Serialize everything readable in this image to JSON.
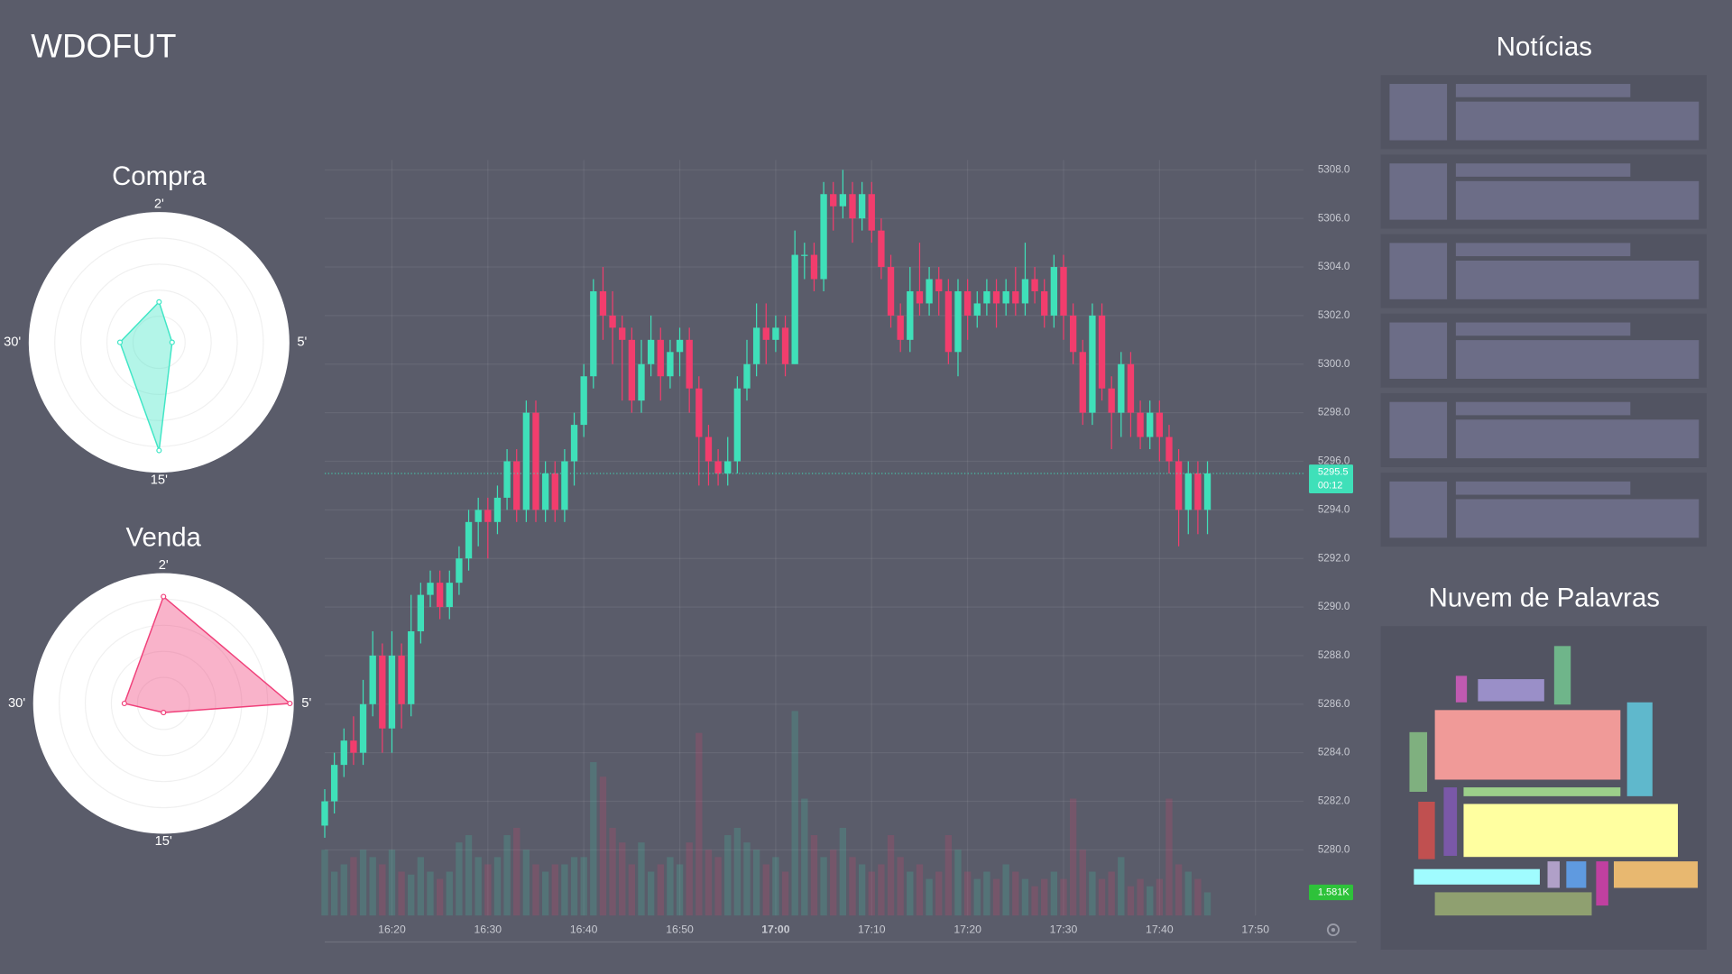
{
  "header": {
    "title": "WDOFUT"
  },
  "news": {
    "title": "Notícias"
  },
  "wordcloud": {
    "title": "Nuvem de Palavras"
  },
  "chart_data": [
    {
      "type": "candlestick",
      "x": [
        "16:13",
        "16:14",
        "16:15",
        "16:16",
        "16:17",
        "16:18",
        "16:19",
        "16:20",
        "16:21",
        "16:22",
        "16:23",
        "16:24",
        "16:25",
        "16:26",
        "16:27",
        "16:28",
        "16:29",
        "16:30",
        "16:31",
        "16:32",
        "16:33",
        "16:34",
        "16:35",
        "16:36",
        "16:37",
        "16:38",
        "16:39",
        "16:40",
        "16:41",
        "16:42",
        "16:43",
        "16:44",
        "16:45",
        "16:46",
        "16:47",
        "16:48",
        "16:49",
        "16:50",
        "16:51",
        "16:52",
        "16:53",
        "16:54",
        "16:55",
        "16:56",
        "16:57",
        "16:58",
        "16:59",
        "17:00",
        "17:01",
        "17:02",
        "17:03",
        "17:04",
        "17:05",
        "17:06",
        "17:07",
        "17:08",
        "17:09",
        "17:10",
        "17:11",
        "17:12",
        "17:13",
        "17:14",
        "17:15",
        "17:16",
        "17:17",
        "17:18",
        "17:19",
        "17:20",
        "17:21",
        "17:22",
        "17:23",
        "17:24",
        "17:25",
        "17:26",
        "17:27",
        "17:28",
        "17:29",
        "17:30",
        "17:31",
        "17:32",
        "17:33",
        "17:34",
        "17:35",
        "17:36",
        "17:37",
        "17:38",
        "17:39",
        "17:40",
        "17:41",
        "17:42",
        "17:43",
        "17:44",
        "17:45"
      ],
      "open": [
        5281,
        5282,
        5283.5,
        5284.5,
        5284,
        5286,
        5288,
        5285,
        5288,
        5286,
        5289,
        5290.5,
        5291,
        5290,
        5291,
        5292,
        5293.5,
        5294,
        5293.5,
        5294.5,
        5296,
        5294,
        5298,
        5294,
        5295.5,
        5294,
        5296,
        5297.5,
        5299.5,
        5303,
        5302,
        5301.5,
        5301,
        5298.5,
        5300,
        5301,
        5299.5,
        5300.5,
        5301,
        5299,
        5297,
        5296,
        5295.5,
        5296,
        5299,
        5300,
        5301.5,
        5301,
        5301.5,
        5300,
        5304.5,
        5304.5,
        5303.5,
        5307,
        5306.5,
        5307,
        5306,
        5307,
        5305.5,
        5304,
        5302,
        5301,
        5303,
        5302.5,
        5303.5,
        5303,
        5300.5,
        5303,
        5302,
        5302.5,
        5303,
        5302.5,
        5303,
        5302.5,
        5303.5,
        5303,
        5302,
        5304,
        5302,
        5300.5,
        5298,
        5302,
        5299,
        5298,
        5300,
        5298,
        5297,
        5298,
        5297,
        5296,
        5294,
        5295.5,
        5294
      ],
      "high": [
        5282.5,
        5284,
        5285,
        5285.5,
        5287,
        5289,
        5288.5,
        5289,
        5288.5,
        5290.5,
        5291,
        5291.5,
        5291.5,
        5291.5,
        5292.5,
        5294,
        5294.5,
        5294.5,
        5295,
        5296.5,
        5296.5,
        5298.5,
        5298.5,
        5296,
        5296,
        5296.5,
        5298,
        5300,
        5303.5,
        5304,
        5303,
        5302,
        5301.5,
        5301,
        5302,
        5301.5,
        5301,
        5301.5,
        5301.5,
        5299.5,
        5297.5,
        5296.5,
        5297,
        5299.5,
        5301,
        5302.5,
        5302.5,
        5302,
        5302,
        5305.5,
        5305,
        5305,
        5307.5,
        5307.5,
        5308,
        5307.5,
        5307.5,
        5307.5,
        5306,
        5304.5,
        5302.5,
        5304,
        5305,
        5304,
        5304,
        5303.5,
        5303.5,
        5303.5,
        5303,
        5303.5,
        5303.5,
        5303.5,
        5304,
        5305,
        5304,
        5303.5,
        5304.5,
        5304.5,
        5302.5,
        5301,
        5302.5,
        5302.5,
        5299.5,
        5300.5,
        5300.5,
        5298.5,
        5298.5,
        5298.5,
        5297.5,
        5296.5,
        5296,
        5296,
        5296
      ],
      "low": [
        5280.5,
        5281.5,
        5283,
        5283.5,
        5283.5,
        5285.5,
        5284,
        5284,
        5285,
        5285.5,
        5288.5,
        5290,
        5289.5,
        5289.5,
        5290.5,
        5291.5,
        5292.5,
        5292,
        5293,
        5294,
        5293.5,
        5293.5,
        5293.5,
        5293.5,
        5293.5,
        5293.5,
        5295,
        5297,
        5299,
        5301,
        5300,
        5298.5,
        5298,
        5298,
        5299.5,
        5298.5,
        5299,
        5299.5,
        5298,
        5295,
        5295,
        5295,
        5295,
        5295.5,
        5298.5,
        5299.5,
        5300,
        5300.5,
        5299.5,
        5300,
        5303.5,
        5303,
        5303,
        5305.5,
        5306,
        5305,
        5305.5,
        5305,
        5303.5,
        5301.5,
        5300.5,
        5300.5,
        5302,
        5302,
        5302,
        5300,
        5299.5,
        5301,
        5301.5,
        5302,
        5301.5,
        5302,
        5302,
        5302,
        5302.5,
        5301.5,
        5301.5,
        5301,
        5300,
        5297.5,
        5297.5,
        5298.5,
        5296.5,
        5297,
        5297,
        5296.5,
        5296.5,
        5296,
        5295.5,
        5292.5,
        5293,
        5293,
        5293
      ],
      "close": [
        5282,
        5283.5,
        5284.5,
        5284,
        5286,
        5288,
        5285,
        5288,
        5286,
        5289,
        5290.5,
        5291,
        5290,
        5291,
        5292,
        5293.5,
        5294,
        5293.5,
        5294.5,
        5296,
        5294,
        5298,
        5294,
        5295.5,
        5294,
        5296,
        5297.5,
        5299.5,
        5303,
        5302,
        5301.5,
        5301,
        5298.5,
        5300,
        5301,
        5299.5,
        5300.5,
        5301,
        5299,
        5297,
        5296,
        5295.5,
        5296,
        5299,
        5300,
        5301.5,
        5301,
        5301.5,
        5300,
        5304.5,
        5304.5,
        5303.5,
        5307,
        5306.5,
        5307,
        5306,
        5307,
        5305.5,
        5304,
        5302,
        5301,
        5303,
        5302.5,
        5303.5,
        5303,
        5300.5,
        5303,
        5302,
        5302.5,
        5303,
        5302.5,
        5303,
        5302.5,
        5303.5,
        5303,
        5302,
        5304,
        5302,
        5300.5,
        5298,
        5302,
        5299,
        5298,
        5300,
        5298,
        5297,
        5298,
        5297,
        5296,
        5294,
        5295.5,
        5294,
        5295.5
      ],
      "volume": [
        4500,
        3000,
        3500,
        4000,
        4500,
        4000,
        3500,
        4500,
        3000,
        2800,
        4000,
        3000,
        2500,
        3000,
        5000,
        5500,
        4000,
        3500,
        4000,
        5500,
        6000,
        4500,
        3500,
        3000,
        3500,
        3500,
        4000,
        4000,
        10500,
        9500,
        6000,
        5000,
        3500,
        5000,
        3000,
        3500,
        4000,
        3500,
        5000,
        12500,
        4500,
        4000,
        5500,
        6000,
        5000,
        4500,
        3500,
        4000,
        3000,
        14000,
        8000,
        5500,
        4000,
        4500,
        6000,
        4000,
        3500,
        3000,
        3500,
        5500,
        4000,
        3000,
        3500,
        2500,
        3000,
        5500,
        4500,
        3000,
        2500,
        3000,
        2500,
        3500,
        3000,
        2500,
        2000,
        2500,
        3000,
        2500,
        8000,
        4500,
        3000,
        2500,
        3000,
        4000,
        2000,
        2500,
        2000,
        2500,
        8000,
        3500,
        3000,
        2500,
        1581
      ],
      "volume_last_label": "1.581K",
      "countdown": "00:12",
      "up_color": "#3fe0b9",
      "down_color": "#f23d6d",
      "xlim": [
        "16:13",
        "17:55"
      ],
      "xticks": [
        "16:20",
        "16:30",
        "16:40",
        "16:50",
        "17:00",
        "17:10",
        "17:20",
        "17:30",
        "17:40",
        "17:50"
      ],
      "ylim": [
        5277.3,
        5308.4
      ],
      "yticks": [
        {
          "value": 5280,
          "label": "5280.0"
        },
        {
          "value": 5282,
          "label": "5282.0"
        },
        {
          "value": 5284,
          "label": "5284.0"
        },
        {
          "value": 5286,
          "label": "5286.0"
        },
        {
          "value": 5288,
          "label": "5288.0"
        },
        {
          "value": 5290,
          "label": "5290.0"
        },
        {
          "value": 5292,
          "label": "5292.0"
        },
        {
          "value": 5294,
          "label": "5294.0"
        },
        {
          "value": 5296,
          "label": "5296.0"
        },
        {
          "value": 5298,
          "label": "5298.0"
        },
        {
          "value": 5300,
          "label": "5300.0"
        },
        {
          "value": 5302,
          "label": "5302.0"
        },
        {
          "value": 5304,
          "label": "5304.0"
        },
        {
          "value": 5306,
          "label": "5306.0"
        },
        {
          "value": 5308,
          "label": "5308.0"
        }
      ],
      "y2lim": [
        0,
        15000
      ],
      "grid": true
    },
    {
      "type": "radar",
      "title": "Compra",
      "categories": [
        "2'",
        "5'",
        "15'",
        "30'"
      ],
      "values": [
        0.31,
        0.1,
        0.83,
        0.3
      ],
      "rlim": [
        0,
        1
      ],
      "rticks": [
        0.2,
        0.4,
        0.6,
        0.8
      ],
      "color": "#40e6c6"
    },
    {
      "type": "radar",
      "title": "Venda",
      "categories": [
        "2'",
        "5'",
        "15'",
        "30'"
      ],
      "values": [
        0.82,
        0.97,
        0.07,
        0.3
      ],
      "rlim": [
        0,
        1
      ],
      "rticks": [
        0.2,
        0.4,
        0.6,
        0.8
      ],
      "color": "#f0407a"
    }
  ]
}
